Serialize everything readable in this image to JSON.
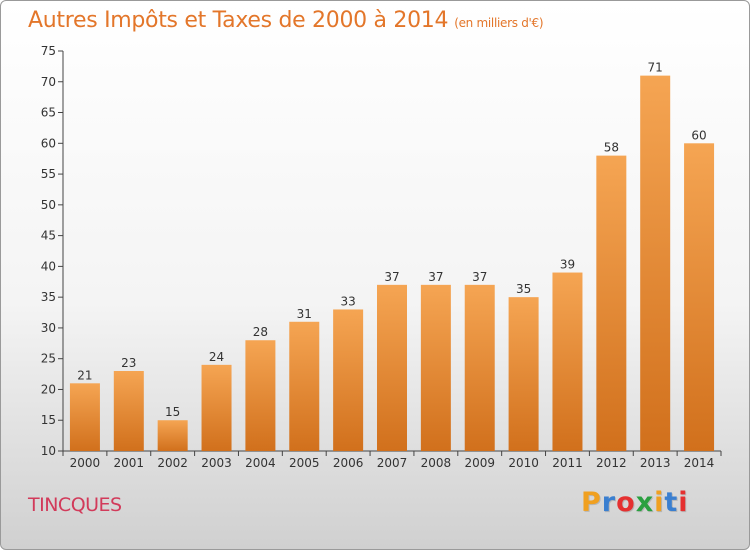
{
  "chart_data": {
    "type": "bar",
    "title": "Autres Impôts et Taxes de 2000 à 2014",
    "unit": "(en milliers d'€)",
    "categories": [
      "2000",
      "2001",
      "2002",
      "2003",
      "2004",
      "2005",
      "2006",
      "2007",
      "2008",
      "2009",
      "2010",
      "2011",
      "2012",
      "2013",
      "2014"
    ],
    "values": [
      21,
      23,
      15,
      24,
      28,
      31,
      33,
      37,
      37,
      37,
      35,
      39,
      58,
      71,
      60
    ],
    "ylim": [
      10,
      75
    ],
    "yticks": [
      10,
      15,
      20,
      25,
      30,
      35,
      40,
      45,
      50,
      55,
      60,
      65,
      70,
      75
    ],
    "grid": false,
    "bar_color_top": "#f5a553",
    "bar_color_bottom": "#d1701c"
  },
  "footer": {
    "commune": "TINCQUES",
    "logo_letters": [
      "P",
      "r",
      "o",
      "x",
      "i",
      "t",
      "i"
    ],
    "logo_colors": [
      "#f0a020",
      "#3a7fd0",
      "#e53030",
      "#2aa040",
      "#f0a020",
      "#3a7fd0",
      "#e53030"
    ]
  }
}
